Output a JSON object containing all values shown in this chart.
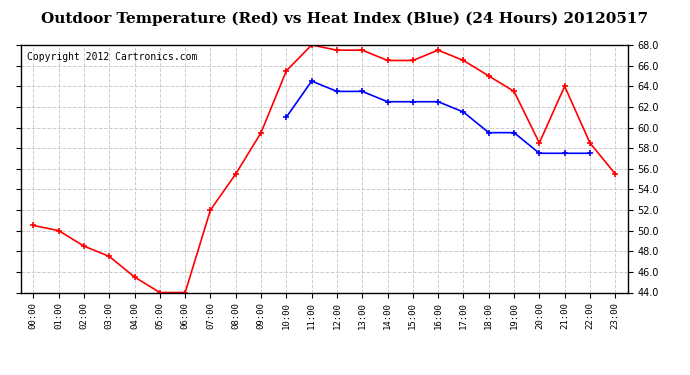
{
  "title": "Outdoor Temperature (Red) vs Heat Index (Blue) (24 Hours) 20120517",
  "copyright": "Copyright 2012 Cartronics.com",
  "x_labels": [
    "00:00",
    "01:00",
    "02:00",
    "03:00",
    "04:00",
    "05:00",
    "06:00",
    "07:00",
    "08:00",
    "09:00",
    "10:00",
    "11:00",
    "12:00",
    "13:00",
    "14:00",
    "15:00",
    "16:00",
    "17:00",
    "18:00",
    "19:00",
    "20:00",
    "21:00",
    "22:00",
    "23:00"
  ],
  "red_temps": [
    50.5,
    50.0,
    48.5,
    47.5,
    45.5,
    44.0,
    44.0,
    52.0,
    55.5,
    59.5,
    65.5,
    68.0,
    67.5,
    67.5,
    66.5,
    66.5,
    67.5,
    66.5,
    65.0,
    63.5,
    58.5,
    64.0,
    58.5,
    55.5
  ],
  "blue_temps": [
    null,
    null,
    null,
    null,
    null,
    null,
    null,
    null,
    null,
    null,
    61.0,
    64.5,
    63.5,
    63.5,
    62.5,
    62.5,
    62.5,
    61.5,
    59.5,
    59.5,
    57.5,
    57.5,
    57.5,
    null
  ],
  "ylim": [
    44.0,
    68.0
  ],
  "yticks": [
    44.0,
    46.0,
    48.0,
    50.0,
    52.0,
    54.0,
    56.0,
    58.0,
    60.0,
    62.0,
    64.0,
    66.0,
    68.0
  ],
  "red_color": "red",
  "blue_color": "blue",
  "bg_color": "#ffffff",
  "grid_color": "#cccccc",
  "title_fontsize": 11,
  "copyright_fontsize": 7
}
